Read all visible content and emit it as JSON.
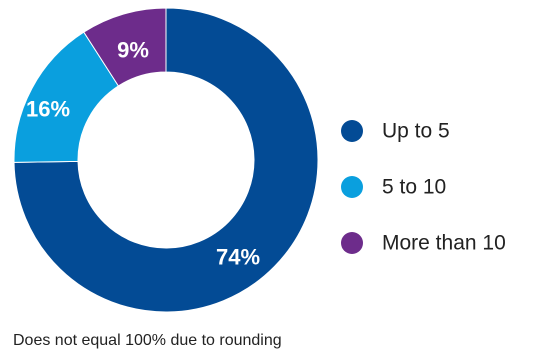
{
  "chart_data": {
    "type": "pie",
    "variant": "donut",
    "categories": [
      "Up to 5",
      "5 to 10",
      "More than 10"
    ],
    "values": [
      74,
      16,
      9
    ],
    "data_labels": [
      "74%",
      "16%",
      "9%"
    ],
    "colors": [
      "#034b95",
      "#0a9fde",
      "#6d2c8b"
    ],
    "start_angle_deg": 0,
    "direction": "clockwise",
    "legend_position": "right",
    "title": "",
    "footnote": "Does not equal 100% due to rounding"
  }
}
